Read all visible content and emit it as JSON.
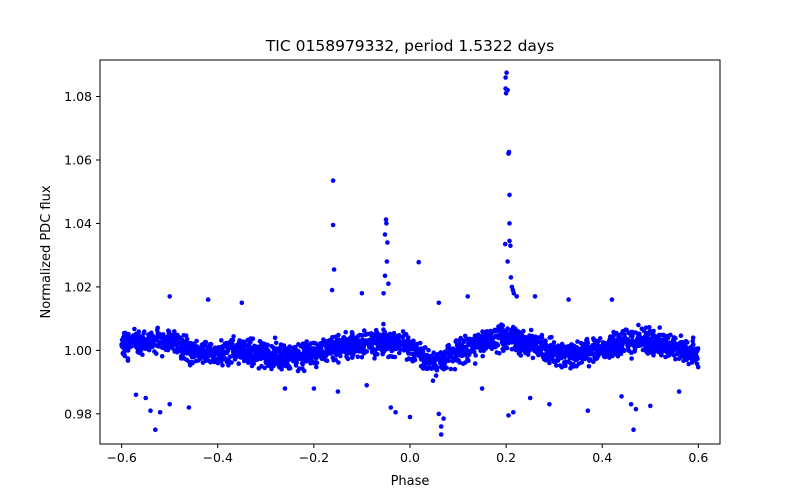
{
  "chart_data": {
    "type": "scatter",
    "title": "TIC 0158979332, period 1.5322 days",
    "xlabel": "Phase",
    "ylabel": "Normalized PDC flux",
    "xlim": [
      -0.645,
      0.645
    ],
    "ylim": [
      0.9705,
      1.0915
    ],
    "grid": false,
    "marker_color": "#0000ff",
    "x_ticks": [
      -0.6,
      -0.4,
      -0.2,
      0.0,
      0.2,
      0.4,
      0.6
    ],
    "x_tick_labels": [
      "−0.6",
      "−0.4",
      "−0.2",
      "0.0",
      "0.2",
      "0.4",
      "0.6"
    ],
    "y_ticks": [
      0.98,
      1.0,
      1.02,
      1.04,
      1.06,
      1.08
    ],
    "y_tick_labels": [
      "0.98",
      "1.00",
      "1.02",
      "1.04",
      "1.06",
      "1.08"
    ],
    "band_trend": [
      [
        -0.6,
        1.002
      ],
      [
        -0.55,
        1.003
      ],
      [
        -0.5,
        1.003
      ],
      [
        -0.45,
        1.0
      ],
      [
        -0.4,
        0.999
      ],
      [
        -0.35,
        1.0
      ],
      [
        -0.3,
        0.999
      ],
      [
        -0.25,
        0.998
      ],
      [
        -0.2,
        0.999
      ],
      [
        -0.15,
        1.001
      ],
      [
        -0.1,
        1.002
      ],
      [
        -0.05,
        1.003
      ],
      [
        0.0,
        1.001
      ],
      [
        0.05,
        0.996
      ],
      [
        0.1,
        0.999
      ],
      [
        0.15,
        1.003
      ],
      [
        0.2,
        1.004
      ],
      [
        0.25,
        1.002
      ],
      [
        0.3,
        0.999
      ],
      [
        0.35,
        0.999
      ],
      [
        0.4,
        1.001
      ],
      [
        0.45,
        1.003
      ],
      [
        0.5,
        1.003
      ],
      [
        0.55,
        1.001
      ],
      [
        0.6,
        0.999
      ]
    ],
    "band_half_width": 0.008,
    "band_point_count": 2600,
    "outliers": [
      [
        0.199,
        1.086
      ],
      [
        0.201,
        1.0875
      ],
      [
        0.199,
        1.0825
      ],
      [
        0.203,
        1.082
      ],
      [
        0.2,
        1.081
      ],
      [
        0.205,
        1.062
      ],
      [
        0.206,
        1.0625
      ],
      [
        0.207,
        1.049
      ],
      [
        0.207,
        1.04
      ],
      [
        0.207,
        1.0345
      ],
      [
        0.209,
        1.033
      ],
      [
        0.198,
        1.0335
      ],
      [
        0.203,
        1.028
      ],
      [
        0.21,
        1.023
      ],
      [
        0.212,
        1.02
      ],
      [
        0.214,
        1.019
      ],
      [
        0.216,
        1.018
      ],
      [
        0.222,
        1.017
      ],
      [
        -0.16,
        1.0535
      ],
      [
        -0.16,
        1.0395
      ],
      [
        -0.158,
        1.0255
      ],
      [
        -0.162,
        1.019
      ],
      [
        -0.05,
        1.0412
      ],
      [
        -0.049,
        1.04
      ],
      [
        -0.052,
        1.0365
      ],
      [
        -0.047,
        1.034
      ],
      [
        -0.048,
        1.028
      ],
      [
        -0.052,
        1.0235
      ],
      [
        -0.045,
        1.021
      ],
      [
        -0.055,
        1.018
      ],
      [
        0.018,
        1.0278
      ],
      [
        -0.1,
        1.018
      ],
      [
        0.06,
        1.015
      ],
      [
        0.12,
        1.017
      ],
      [
        0.26,
        1.017
      ],
      [
        0.33,
        1.016
      ],
      [
        0.42,
        1.016
      ],
      [
        -0.35,
        1.015
      ],
      [
        -0.42,
        1.016
      ],
      [
        -0.5,
        1.017
      ],
      [
        -0.53,
        0.975
      ],
      [
        -0.55,
        0.985
      ],
      [
        -0.57,
        0.986
      ],
      [
        -0.5,
        0.983
      ],
      [
        -0.46,
        0.982
      ],
      [
        -0.54,
        0.981
      ],
      [
        -0.52,
        0.9805
      ],
      [
        0.46,
        0.983
      ],
      [
        0.47,
        0.9815
      ],
      [
        0.465,
        0.975
      ],
      [
        0.44,
        0.9855
      ],
      [
        0.5,
        0.9825
      ],
      [
        0.065,
        0.9735
      ],
      [
        0.065,
        0.976
      ],
      [
        0.07,
        0.9785
      ],
      [
        0.06,
        0.98
      ],
      [
        0.0,
        0.979
      ],
      [
        -0.04,
        0.982
      ],
      [
        -0.03,
        0.9805
      ],
      [
        0.215,
        0.9805
      ],
      [
        0.205,
        0.9795
      ],
      [
        0.37,
        0.981
      ],
      [
        0.29,
        0.983
      ],
      [
        0.25,
        0.985
      ],
      [
        -0.2,
        0.988
      ],
      [
        -0.09,
        0.989
      ],
      [
        0.56,
        0.987
      ],
      [
        -0.26,
        0.988
      ],
      [
        -0.15,
        0.987
      ],
      [
        0.15,
        0.988
      ]
    ]
  }
}
